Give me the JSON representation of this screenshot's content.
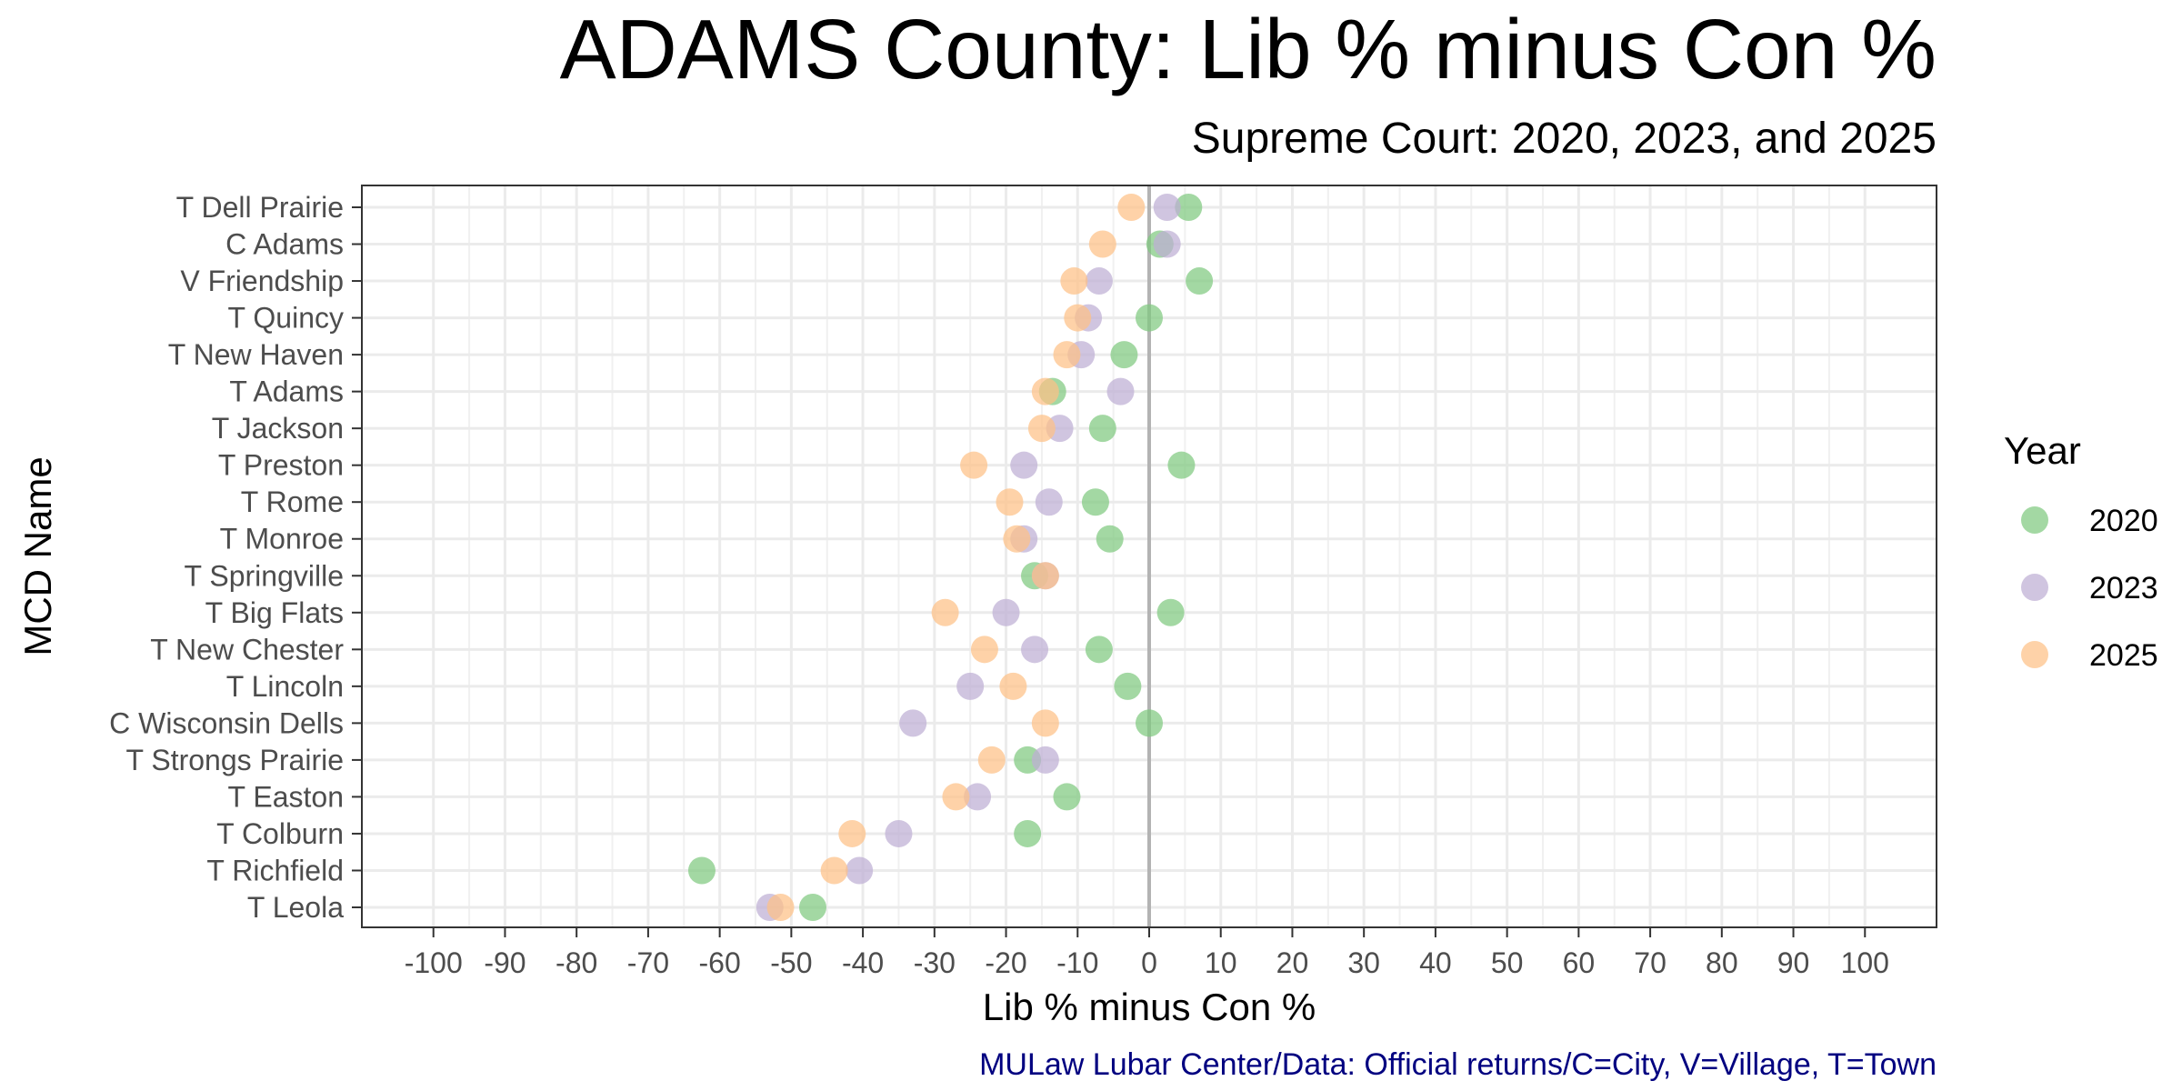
{
  "chart_data": {
    "type": "scatter",
    "title": "ADAMS County: Lib % minus Con %",
    "subtitle": "Supreme Court: 2020, 2023, and 2025",
    "xlabel": "Lib % minus Con %",
    "ylabel": "MCD Name",
    "caption": "MULaw Lubar Center/Data: Official returns/C=City, V=Village, T=Town",
    "xlim": [
      -110,
      110
    ],
    "x_ticks": [
      -100,
      -90,
      -80,
      -70,
      -60,
      -50,
      -40,
      -30,
      -20,
      -10,
      0,
      10,
      20,
      30,
      40,
      50,
      60,
      70,
      80,
      90,
      100
    ],
    "x_tick_labels": [
      "-100",
      "-90",
      "-80",
      "-70",
      "-60",
      "-50",
      "-40",
      "-30",
      "-20",
      "-10",
      "0",
      "10",
      "20",
      "30",
      "40",
      "50",
      "60",
      "70",
      "80",
      "90",
      "100"
    ],
    "grid": true,
    "reference_line": 0,
    "legend": {
      "title": "Year",
      "placement": "right"
    },
    "categories": [
      "T Dell Prairie",
      "C Adams",
      "V Friendship",
      "T Quincy",
      "T New Haven",
      "T Adams",
      "T Jackson",
      "T Preston",
      "T Rome",
      "T Monroe",
      "T Springville",
      "T Big Flats",
      "T New Chester",
      "T Lincoln",
      "C Wisconsin Dells",
      "T Strongs Prairie",
      "T Easton",
      "T Colburn",
      "T Richfield",
      "T Leola"
    ],
    "series": [
      {
        "name": "2020",
        "color": "#7fc97f",
        "values": [
          5.5,
          1.5,
          7.0,
          0.0,
          -3.5,
          -13.5,
          -6.5,
          4.5,
          -7.5,
          -5.5,
          -16.0,
          3.0,
          -7.0,
          -3.0,
          0.0,
          -17.0,
          -11.5,
          -17.0,
          -62.5,
          -47.0
        ]
      },
      {
        "name": "2023",
        "color": "#beaed4",
        "values": [
          2.5,
          2.5,
          -7.0,
          -8.5,
          -9.5,
          -4.0,
          -12.5,
          -17.5,
          -14.0,
          -17.5,
          -14.5,
          -20.0,
          -16.0,
          -25.0,
          -33.0,
          -14.5,
          -24.0,
          -35.0,
          -40.5,
          -53.0
        ]
      },
      {
        "name": "2025",
        "color": "#fdc086",
        "values": [
          -2.5,
          -6.5,
          -10.5,
          -10.0,
          -11.5,
          -14.5,
          -15.0,
          -24.5,
          -19.5,
          -18.5,
          -14.5,
          -28.5,
          -23.0,
          -19.0,
          -14.5,
          -22.0,
          -27.0,
          -41.5,
          -44.0,
          -51.5
        ]
      }
    ]
  }
}
